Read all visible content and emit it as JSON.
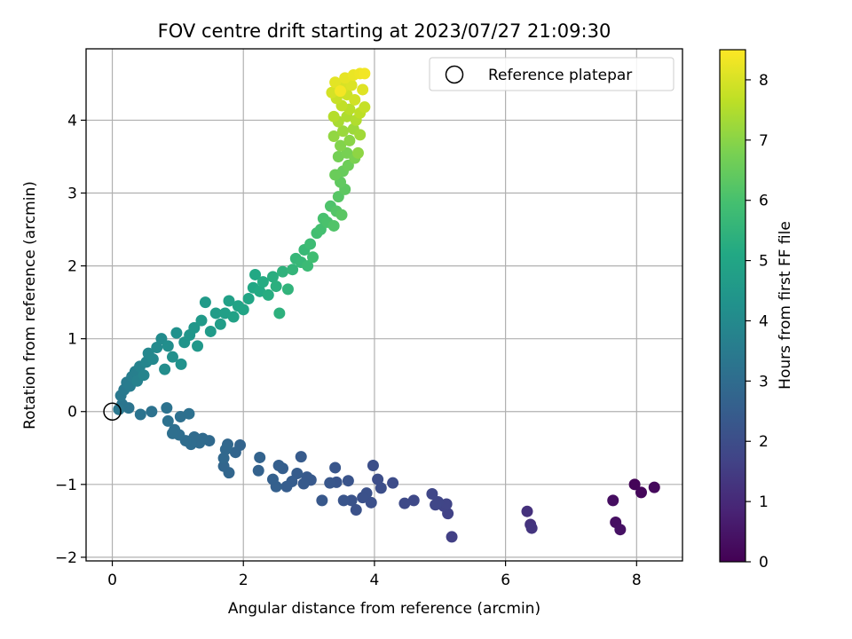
{
  "chart_data": {
    "type": "scatter",
    "title": "FOV centre drift starting at 2023/07/27 21:09:30",
    "xlabel": "Angular distance from reference (arcmin)",
    "ylabel": "Rotation from reference (arcmin)",
    "xlim": [
      -0.4,
      8.7
    ],
    "ylim": [
      -2.05,
      4.98
    ],
    "xticks": [
      0,
      2,
      4,
      6,
      8
    ],
    "yticks": [
      -2,
      -1,
      0,
      1,
      2,
      3,
      4
    ],
    "grid": true,
    "colormap": "viridis",
    "colorbar": {
      "label": "Hours from first FF file",
      "range": [
        0,
        8.5
      ],
      "ticks": [
        0,
        1,
        2,
        3,
        4,
        5,
        6,
        7,
        8
      ]
    },
    "legend": {
      "position": "top-right",
      "entries": [
        "Reference platepar"
      ]
    },
    "reference_point": {
      "x": 0,
      "y": 0
    },
    "series": [
      {
        "points": [
          {
            "x": 7.97,
            "y": -1.0,
            "c": 0.1
          },
          {
            "x": 8.07,
            "y": -1.11,
            "c": 0.15
          },
          {
            "x": 8.27,
            "y": -1.04,
            "c": 0.2
          },
          {
            "x": 7.64,
            "y": -1.22,
            "c": 0.3
          },
          {
            "x": 7.68,
            "y": -1.52,
            "c": 0.35
          },
          {
            "x": 7.75,
            "y": -1.62,
            "c": 0.4
          },
          {
            "x": 6.33,
            "y": -1.37,
            "c": 1.2
          },
          {
            "x": 6.38,
            "y": -1.55,
            "c": 1.25
          },
          {
            "x": 6.4,
            "y": -1.6,
            "c": 1.3
          },
          {
            "x": 5.18,
            "y": -1.72,
            "c": 1.6
          },
          {
            "x": 5.12,
            "y": -1.4,
            "c": 1.65
          },
          {
            "x": 5.06,
            "y": -1.3,
            "c": 1.7
          },
          {
            "x": 5.1,
            "y": -1.27,
            "c": 1.72
          },
          {
            "x": 4.97,
            "y": -1.24,
            "c": 1.75
          },
          {
            "x": 4.93,
            "y": -1.28,
            "c": 1.78
          },
          {
            "x": 4.88,
            "y": -1.13,
            "c": 1.8
          },
          {
            "x": 4.6,
            "y": -1.22,
            "c": 1.85
          },
          {
            "x": 4.46,
            "y": -1.26,
            "c": 1.9
          },
          {
            "x": 4.28,
            "y": -0.98,
            "c": 1.95
          },
          {
            "x": 4.05,
            "y": -0.93,
            "c": 2.0
          },
          {
            "x": 4.1,
            "y": -1.05,
            "c": 2.02
          },
          {
            "x": 3.98,
            "y": -0.74,
            "c": 2.05
          },
          {
            "x": 3.95,
            "y": -1.25,
            "c": 2.08
          },
          {
            "x": 3.88,
            "y": -1.12,
            "c": 2.1
          },
          {
            "x": 3.82,
            "y": -1.18,
            "c": 2.12
          },
          {
            "x": 3.72,
            "y": -1.35,
            "c": 2.15
          },
          {
            "x": 3.65,
            "y": -1.22,
            "c": 2.18
          },
          {
            "x": 3.6,
            "y": -0.95,
            "c": 2.2
          },
          {
            "x": 3.53,
            "y": -1.22,
            "c": 2.22
          },
          {
            "x": 3.42,
            "y": -0.97,
            "c": 2.25
          },
          {
            "x": 3.4,
            "y": -0.77,
            "c": 2.28
          },
          {
            "x": 3.32,
            "y": -0.98,
            "c": 2.3
          },
          {
            "x": 3.2,
            "y": -1.22,
            "c": 2.32
          },
          {
            "x": 3.03,
            "y": -0.94,
            "c": 2.35
          },
          {
            "x": 2.97,
            "y": -0.9,
            "c": 2.38
          },
          {
            "x": 2.92,
            "y": -0.99,
            "c": 2.4
          },
          {
            "x": 2.88,
            "y": -0.62,
            "c": 2.42
          },
          {
            "x": 2.82,
            "y": -0.85,
            "c": 2.45
          },
          {
            "x": 2.74,
            "y": -0.96,
            "c": 2.48
          },
          {
            "x": 2.66,
            "y": -1.03,
            "c": 2.5
          },
          {
            "x": 2.6,
            "y": -0.78,
            "c": 2.52
          },
          {
            "x": 2.54,
            "y": -0.74,
            "c": 2.55
          },
          {
            "x": 2.5,
            "y": -1.03,
            "c": 2.58
          },
          {
            "x": 2.45,
            "y": -0.93,
            "c": 2.6
          },
          {
            "x": 2.23,
            "y": -0.81,
            "c": 2.65
          },
          {
            "x": 2.25,
            "y": -0.63,
            "c": 2.68
          },
          {
            "x": 1.95,
            "y": -0.46,
            "c": 2.72
          },
          {
            "x": 1.88,
            "y": -0.56,
            "c": 2.75
          },
          {
            "x": 1.78,
            "y": -0.84,
            "c": 2.78
          },
          {
            "x": 1.7,
            "y": -0.75,
            "c": 2.8
          },
          {
            "x": 1.76,
            "y": -0.45,
            "c": 2.82
          },
          {
            "x": 1.73,
            "y": -0.52,
            "c": 2.85
          },
          {
            "x": 1.7,
            "y": -0.64,
            "c": 2.87
          },
          {
            "x": 1.48,
            "y": -0.4,
            "c": 2.9
          },
          {
            "x": 1.38,
            "y": -0.37,
            "c": 2.92
          },
          {
            "x": 1.33,
            "y": -0.43,
            "c": 2.95
          },
          {
            "x": 1.25,
            "y": -0.35,
            "c": 2.97
          },
          {
            "x": 1.2,
            "y": -0.45,
            "c": 3.0
          },
          {
            "x": 1.12,
            "y": -0.4,
            "c": 3.02
          },
          {
            "x": 1.02,
            "y": -0.32,
            "c": 3.05
          },
          {
            "x": 0.95,
            "y": -0.25,
            "c": 3.08
          },
          {
            "x": 0.92,
            "y": -0.3,
            "c": 3.1
          },
          {
            "x": 1.04,
            "y": -0.07,
            "c": 3.12
          },
          {
            "x": 1.17,
            "y": -0.03,
            "c": 3.14
          },
          {
            "x": 0.85,
            "y": -0.13,
            "c": 3.16
          },
          {
            "x": 0.83,
            "y": 0.05,
            "c": 3.18
          },
          {
            "x": 0.6,
            "y": 0.0,
            "c": 3.2
          },
          {
            "x": 0.43,
            "y": -0.04,
            "c": 3.22
          },
          {
            "x": 0.25,
            "y": 0.05,
            "c": 3.25
          },
          {
            "x": 0.15,
            "y": 0.1,
            "c": 3.3
          },
          {
            "x": 0.1,
            "y": 0.03,
            "c": 3.35
          },
          {
            "x": 0.13,
            "y": 0.22,
            "c": 3.4
          },
          {
            "x": 0.18,
            "y": 0.3,
            "c": 3.45
          },
          {
            "x": 0.22,
            "y": 0.4,
            "c": 3.5
          },
          {
            "x": 0.27,
            "y": 0.35,
            "c": 3.55
          },
          {
            "x": 0.3,
            "y": 0.48,
            "c": 3.6
          },
          {
            "x": 0.35,
            "y": 0.55,
            "c": 3.65
          },
          {
            "x": 0.38,
            "y": 0.42,
            "c": 3.7
          },
          {
            "x": 0.42,
            "y": 0.62,
            "c": 3.75
          },
          {
            "x": 0.48,
            "y": 0.5,
            "c": 3.8
          },
          {
            "x": 0.52,
            "y": 0.68,
            "c": 3.85
          },
          {
            "x": 0.55,
            "y": 0.8,
            "c": 3.9
          },
          {
            "x": 0.62,
            "y": 0.72,
            "c": 3.95
          },
          {
            "x": 0.68,
            "y": 0.88,
            "c": 4.0
          },
          {
            "x": 0.75,
            "y": 1.0,
            "c": 4.05
          },
          {
            "x": 0.8,
            "y": 0.58,
            "c": 4.1
          },
          {
            "x": 0.85,
            "y": 0.9,
            "c": 4.15
          },
          {
            "x": 0.92,
            "y": 0.75,
            "c": 4.2
          },
          {
            "x": 0.98,
            "y": 1.08,
            "c": 4.25
          },
          {
            "x": 1.05,
            "y": 0.65,
            "c": 4.3
          },
          {
            "x": 1.1,
            "y": 0.95,
            "c": 4.35
          },
          {
            "x": 1.18,
            "y": 1.05,
            "c": 4.4
          },
          {
            "x": 1.25,
            "y": 1.15,
            "c": 4.45
          },
          {
            "x": 1.3,
            "y": 0.9,
            "c": 4.5
          },
          {
            "x": 1.36,
            "y": 1.25,
            "c": 4.55
          },
          {
            "x": 1.42,
            "y": 1.5,
            "c": 4.6
          },
          {
            "x": 1.5,
            "y": 1.1,
            "c": 4.62
          },
          {
            "x": 1.58,
            "y": 1.35,
            "c": 4.65
          },
          {
            "x": 1.65,
            "y": 1.2,
            "c": 4.7
          },
          {
            "x": 1.72,
            "y": 1.35,
            "c": 4.75
          },
          {
            "x": 1.78,
            "y": 1.52,
            "c": 4.8
          },
          {
            "x": 1.85,
            "y": 1.3,
            "c": 4.85
          },
          {
            "x": 1.92,
            "y": 1.45,
            "c": 4.9
          },
          {
            "x": 2.0,
            "y": 1.4,
            "c": 4.95
          },
          {
            "x": 2.08,
            "y": 1.55,
            "c": 5.0
          },
          {
            "x": 2.15,
            "y": 1.7,
            "c": 5.05
          },
          {
            "x": 2.18,
            "y": 1.88,
            "c": 5.1
          },
          {
            "x": 2.25,
            "y": 1.65,
            "c": 5.15
          },
          {
            "x": 2.3,
            "y": 1.78,
            "c": 5.2
          },
          {
            "x": 2.38,
            "y": 1.6,
            "c": 5.25
          },
          {
            "x": 2.45,
            "y": 1.85,
            "c": 5.3
          },
          {
            "x": 2.5,
            "y": 1.72,
            "c": 5.35
          },
          {
            "x": 2.55,
            "y": 1.35,
            "c": 5.4
          },
          {
            "x": 2.6,
            "y": 1.92,
            "c": 5.45
          },
          {
            "x": 2.68,
            "y": 1.68,
            "c": 5.5
          },
          {
            "x": 2.75,
            "y": 1.95,
            "c": 5.55
          },
          {
            "x": 2.8,
            "y": 2.1,
            "c": 5.6
          },
          {
            "x": 2.88,
            "y": 2.05,
            "c": 5.65
          },
          {
            "x": 2.93,
            "y": 2.22,
            "c": 5.7
          },
          {
            "x": 2.98,
            "y": 2.0,
            "c": 5.75
          },
          {
            "x": 3.02,
            "y": 2.3,
            "c": 5.8
          },
          {
            "x": 3.06,
            "y": 2.12,
            "c": 5.85
          },
          {
            "x": 3.12,
            "y": 2.45,
            "c": 5.9
          },
          {
            "x": 3.18,
            "y": 2.5,
            "c": 5.95
          },
          {
            "x": 3.22,
            "y": 2.65,
            "c": 6.0
          },
          {
            "x": 3.28,
            "y": 2.6,
            "c": 6.05
          },
          {
            "x": 3.33,
            "y": 2.82,
            "c": 6.1
          },
          {
            "x": 3.38,
            "y": 2.55,
            "c": 6.15
          },
          {
            "x": 3.42,
            "y": 2.75,
            "c": 6.2
          },
          {
            "x": 3.45,
            "y": 2.95,
            "c": 6.25
          },
          {
            "x": 3.5,
            "y": 2.7,
            "c": 6.3
          },
          {
            "x": 3.55,
            "y": 3.05,
            "c": 6.35
          },
          {
            "x": 3.48,
            "y": 3.15,
            "c": 6.4
          },
          {
            "x": 3.52,
            "y": 3.3,
            "c": 6.5
          },
          {
            "x": 3.4,
            "y": 3.25,
            "c": 6.55
          },
          {
            "x": 3.6,
            "y": 3.38,
            "c": 6.6
          },
          {
            "x": 3.45,
            "y": 3.5,
            "c": 6.7
          },
          {
            "x": 3.58,
            "y": 3.55,
            "c": 6.75
          },
          {
            "x": 3.7,
            "y": 3.48,
            "c": 6.8
          },
          {
            "x": 3.48,
            "y": 3.65,
            "c": 6.9
          },
          {
            "x": 3.62,
            "y": 3.72,
            "c": 7.0
          },
          {
            "x": 3.75,
            "y": 3.55,
            "c": 7.05
          },
          {
            "x": 3.38,
            "y": 3.78,
            "c": 7.1
          },
          {
            "x": 3.52,
            "y": 3.85,
            "c": 7.2
          },
          {
            "x": 3.68,
            "y": 3.88,
            "c": 7.25
          },
          {
            "x": 3.78,
            "y": 3.8,
            "c": 7.3
          },
          {
            "x": 3.45,
            "y": 3.98,
            "c": 7.4
          },
          {
            "x": 3.58,
            "y": 4.05,
            "c": 7.45
          },
          {
            "x": 3.72,
            "y": 4.0,
            "c": 7.5
          },
          {
            "x": 3.38,
            "y": 4.05,
            "c": 7.55
          },
          {
            "x": 3.62,
            "y": 4.15,
            "c": 7.6
          },
          {
            "x": 3.78,
            "y": 4.1,
            "c": 7.65
          },
          {
            "x": 3.5,
            "y": 4.2,
            "c": 7.7
          },
          {
            "x": 3.85,
            "y": 4.18,
            "c": 7.75
          },
          {
            "x": 3.42,
            "y": 4.3,
            "c": 7.8
          },
          {
            "x": 3.58,
            "y": 4.35,
            "c": 7.85
          },
          {
            "x": 3.7,
            "y": 4.28,
            "c": 7.9
          },
          {
            "x": 3.35,
            "y": 4.38,
            "c": 7.95
          },
          {
            "x": 3.52,
            "y": 4.45,
            "c": 8.0
          },
          {
            "x": 3.65,
            "y": 4.48,
            "c": 8.05
          },
          {
            "x": 3.82,
            "y": 4.42,
            "c": 8.1
          },
          {
            "x": 3.4,
            "y": 4.52,
            "c": 8.15
          },
          {
            "x": 3.55,
            "y": 4.58,
            "c": 8.2
          },
          {
            "x": 3.68,
            "y": 4.62,
            "c": 8.25
          },
          {
            "x": 3.78,
            "y": 4.64,
            "c": 8.3
          },
          {
            "x": 3.85,
            "y": 4.64,
            "c": 8.35
          },
          {
            "x": 3.48,
            "y": 4.4,
            "c": 8.38
          }
        ]
      }
    ]
  }
}
